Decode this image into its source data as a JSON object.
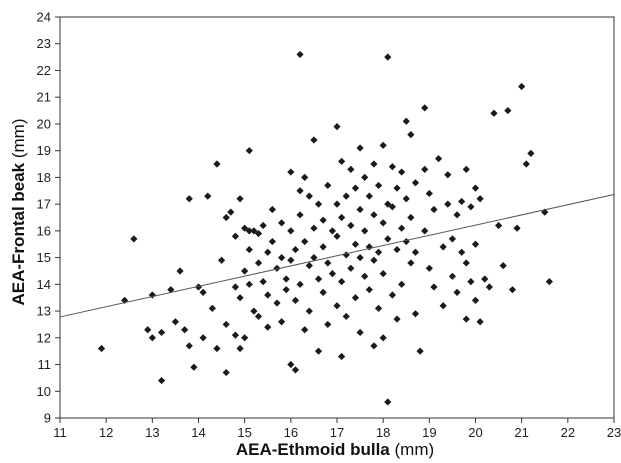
{
  "chart_data": {
    "type": "scatter",
    "xlabel_bold": "AEA-Ethmoid bulla",
    "xlabel_unit": " (mm)",
    "ylabel_bold": "AEA-Frontal beak",
    "ylabel_unit": " (mm)",
    "xlim": [
      11,
      23
    ],
    "ylim": [
      9,
      24
    ],
    "x_ticks": [
      11,
      12,
      13,
      14,
      15,
      16,
      17,
      18,
      19,
      20,
      21,
      22,
      23
    ],
    "y_ticks": [
      9,
      10,
      11,
      12,
      13,
      14,
      15,
      16,
      17,
      18,
      19,
      20,
      21,
      22,
      23,
      24
    ],
    "grid": false,
    "legend": "none",
    "marker": "diamond",
    "marker_color": "#1a1a1a",
    "trendline": {
      "x": [
        11,
        23
      ],
      "y": [
        12.78,
        17.36
      ],
      "color": "#555555"
    },
    "points": [
      [
        11.9,
        11.6
      ],
      [
        12.4,
        13.4
      ],
      [
        12.6,
        15.7
      ],
      [
        12.9,
        12.3
      ],
      [
        13.0,
        13.6
      ],
      [
        13.0,
        12.0
      ],
      [
        13.2,
        10.4
      ],
      [
        13.2,
        12.2
      ],
      [
        13.4,
        13.8
      ],
      [
        13.5,
        12.6
      ],
      [
        13.6,
        14.5
      ],
      [
        13.7,
        12.3
      ],
      [
        13.8,
        17.2
      ],
      [
        13.8,
        11.7
      ],
      [
        13.9,
        10.9
      ],
      [
        14.0,
        13.9
      ],
      [
        14.1,
        13.7
      ],
      [
        14.1,
        12.0
      ],
      [
        14.2,
        17.3
      ],
      [
        14.3,
        13.1
      ],
      [
        14.4,
        18.5
      ],
      [
        14.4,
        11.6
      ],
      [
        14.5,
        14.9
      ],
      [
        14.6,
        16.5
      ],
      [
        14.6,
        12.5
      ],
      [
        14.6,
        10.7
      ],
      [
        14.7,
        16.7
      ],
      [
        14.8,
        15.8
      ],
      [
        14.8,
        13.9
      ],
      [
        14.8,
        12.1
      ],
      [
        14.9,
        17.2
      ],
      [
        14.9,
        13.5
      ],
      [
        14.9,
        11.6
      ],
      [
        15.0,
        16.1
      ],
      [
        15.0,
        14.5
      ],
      [
        15.0,
        12.0
      ],
      [
        15.1,
        19.0
      ],
      [
        15.1,
        16.0
      ],
      [
        15.1,
        15.3
      ],
      [
        15.1,
        14.0
      ],
      [
        15.2,
        16.0
      ],
      [
        15.2,
        13.0
      ],
      [
        15.3,
        15.9
      ],
      [
        15.3,
        14.8
      ],
      [
        15.3,
        12.8
      ],
      [
        15.4,
        16.2
      ],
      [
        15.4,
        14.1
      ],
      [
        15.5,
        15.2
      ],
      [
        15.5,
        13.6
      ],
      [
        15.5,
        12.4
      ],
      [
        15.6,
        16.8
      ],
      [
        15.6,
        15.6
      ],
      [
        15.7,
        14.6
      ],
      [
        15.7,
        13.3
      ],
      [
        15.8,
        16.3
      ],
      [
        15.8,
        15.0
      ],
      [
        15.8,
        12.6
      ],
      [
        15.9,
        14.2
      ],
      [
        15.9,
        13.8
      ],
      [
        16.0,
        18.2
      ],
      [
        16.0,
        16.0
      ],
      [
        16.0,
        14.9
      ],
      [
        16.0,
        11.0
      ],
      [
        16.1,
        15.3
      ],
      [
        16.1,
        13.4
      ],
      [
        16.1,
        10.8
      ],
      [
        16.2,
        22.6
      ],
      [
        16.2,
        17.5
      ],
      [
        16.2,
        16.6
      ],
      [
        16.2,
        14.0
      ],
      [
        16.3,
        18.0
      ],
      [
        16.3,
        15.6
      ],
      [
        16.3,
        12.3
      ],
      [
        16.4,
        17.3
      ],
      [
        16.4,
        14.7
      ],
      [
        16.4,
        13.0
      ],
      [
        16.5,
        19.4
      ],
      [
        16.5,
        16.1
      ],
      [
        16.5,
        15.0
      ],
      [
        16.6,
        17.0
      ],
      [
        16.6,
        14.2
      ],
      [
        16.6,
        11.5
      ],
      [
        16.7,
        16.4
      ],
      [
        16.7,
        15.4
      ],
      [
        16.7,
        13.7
      ],
      [
        16.8,
        17.7
      ],
      [
        16.8,
        14.8
      ],
      [
        16.8,
        12.5
      ],
      [
        16.9,
        16.0
      ],
      [
        16.9,
        14.4
      ],
      [
        17.0,
        19.9
      ],
      [
        17.0,
        17.0
      ],
      [
        17.0,
        15.8
      ],
      [
        17.0,
        13.2
      ],
      [
        17.1,
        18.6
      ],
      [
        17.1,
        16.5
      ],
      [
        17.1,
        14.1
      ],
      [
        17.1,
        11.3
      ],
      [
        17.2,
        17.3
      ],
      [
        17.2,
        15.1
      ],
      [
        17.2,
        12.8
      ],
      [
        17.3,
        18.3
      ],
      [
        17.3,
        16.2
      ],
      [
        17.3,
        14.6
      ],
      [
        17.4,
        17.6
      ],
      [
        17.4,
        15.5
      ],
      [
        17.4,
        13.5
      ],
      [
        17.5,
        19.1
      ],
      [
        17.5,
        16.8
      ],
      [
        17.5,
        15.0
      ],
      [
        17.5,
        12.2
      ],
      [
        17.6,
        18.0
      ],
      [
        17.6,
        16.0
      ],
      [
        17.6,
        14.3
      ],
      [
        17.7,
        17.3
      ],
      [
        17.7,
        15.4
      ],
      [
        17.7,
        13.8
      ],
      [
        17.8,
        18.5
      ],
      [
        17.8,
        16.6
      ],
      [
        17.8,
        14.9
      ],
      [
        17.8,
        11.7
      ],
      [
        17.9,
        17.7
      ],
      [
        17.9,
        15.2
      ],
      [
        17.9,
        13.1
      ],
      [
        18.0,
        19.2
      ],
      [
        18.0,
        16.3
      ],
      [
        18.0,
        14.4
      ],
      [
        18.0,
        12.0
      ],
      [
        18.1,
        22.5
      ],
      [
        18.1,
        17.0
      ],
      [
        18.1,
        15.7
      ],
      [
        18.1,
        9.6
      ],
      [
        18.2,
        18.4
      ],
      [
        18.2,
        16.9
      ],
      [
        18.2,
        13.6
      ],
      [
        18.3,
        17.6
      ],
      [
        18.3,
        15.3
      ],
      [
        18.3,
        12.7
      ],
      [
        18.4,
        18.2
      ],
      [
        18.4,
        16.1
      ],
      [
        18.4,
        14.0
      ],
      [
        18.5,
        20.1
      ],
      [
        18.5,
        17.2
      ],
      [
        18.5,
        15.6
      ],
      [
        18.6,
        19.6
      ],
      [
        18.6,
        16.5
      ],
      [
        18.6,
        14.8
      ],
      [
        18.7,
        17.8
      ],
      [
        18.7,
        15.2
      ],
      [
        18.7,
        12.9
      ],
      [
        18.8,
        11.5
      ],
      [
        18.9,
        20.6
      ],
      [
        18.9,
        18.3
      ],
      [
        18.9,
        16.0
      ],
      [
        19.0,
        17.4
      ],
      [
        19.0,
        14.6
      ],
      [
        19.1,
        16.8
      ],
      [
        19.1,
        13.9
      ],
      [
        19.2,
        18.7
      ],
      [
        19.3,
        15.4
      ],
      [
        19.3,
        13.2
      ],
      [
        19.4,
        18.1
      ],
      [
        19.4,
        17.0
      ],
      [
        19.5,
        15.7
      ],
      [
        19.5,
        14.3
      ],
      [
        19.6,
        16.6
      ],
      [
        19.6,
        13.7
      ],
      [
        19.7,
        17.1
      ],
      [
        19.7,
        15.2
      ],
      [
        19.8,
        18.3
      ],
      [
        19.8,
        14.8
      ],
      [
        19.8,
        12.7
      ],
      [
        19.9,
        16.9
      ],
      [
        19.9,
        14.1
      ],
      [
        20.0,
        17.6
      ],
      [
        20.0,
        15.5
      ],
      [
        20.0,
        13.4
      ],
      [
        20.1,
        17.2
      ],
      [
        20.1,
        12.6
      ],
      [
        20.2,
        14.2
      ],
      [
        20.3,
        13.9
      ],
      [
        20.4,
        20.4
      ],
      [
        20.5,
        16.2
      ],
      [
        20.6,
        14.7
      ],
      [
        20.7,
        20.5
      ],
      [
        20.8,
        13.8
      ],
      [
        20.9,
        16.1
      ],
      [
        21.0,
        21.4
      ],
      [
        21.1,
        18.5
      ],
      [
        21.2,
        18.9
      ],
      [
        21.5,
        16.7
      ],
      [
        21.6,
        14.1
      ]
    ]
  }
}
